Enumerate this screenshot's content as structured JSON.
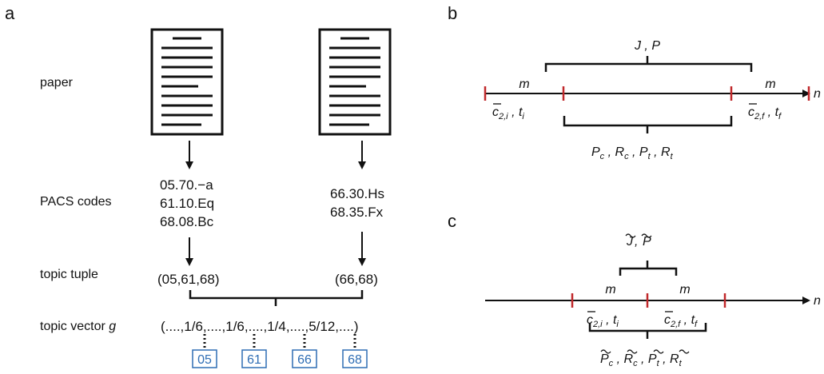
{
  "panels": {
    "a": {
      "letter": "a",
      "row_labels": {
        "paper": "paper",
        "pacs": "PACS codes",
        "tuple": "topic tuple",
        "vector_prefix": "topic vector ",
        "vector_symbol": "g"
      },
      "paper1_codes": [
        "05.70.−a",
        "61.10.Eq",
        "68.08.Bc"
      ],
      "paper2_codes": [
        "66.30.Hs",
        "68.35.Fx"
      ],
      "paper1_tuple": "(05,61,68)",
      "paper2_tuple": "(66,68)",
      "vector_text": "(....,1/6,....,1/6,....,1/4,....,5/12,....)",
      "vector_index_labels": [
        "05",
        "61",
        "66",
        "68"
      ]
    },
    "b": {
      "letter": "b",
      "top_brace": "J , P",
      "left_m": "m",
      "right_m": "m",
      "left_c": "c",
      "left_c_sub": "2,i",
      "left_t": "t",
      "left_t_sub": "i",
      "right_c": "c",
      "right_c_sub": "2,f",
      "right_t": "t",
      "right_t_sub": "f",
      "axis_label": "n",
      "bottom_terms": [
        {
          "sym": "P",
          "sub": "c"
        },
        {
          "sym": "R",
          "sub": "c"
        },
        {
          "sym": "P",
          "sub": "t"
        },
        {
          "sym": "R",
          "sub": "t"
        }
      ]
    },
    "c": {
      "letter": "c",
      "top_J": "J",
      "top_P": "P",
      "left_m": "m",
      "right_m": "m",
      "left_c": "c",
      "left_c_sub": "2,i",
      "left_t": "t",
      "left_t_sub": "i",
      "right_c": "c",
      "right_c_sub": "2,f",
      "right_t": "t",
      "right_t_sub": "f",
      "axis_label": "n",
      "bottom_terms": [
        {
          "sym": "P",
          "sub": "c"
        },
        {
          "sym": "R",
          "sub": "c"
        },
        {
          "sym": "P",
          "sub": "t"
        },
        {
          "sym": "R",
          "sub": "t"
        }
      ]
    }
  },
  "colors": {
    "tick": "#c0282b",
    "box": "#2e6db4",
    "ink": "#111111"
  }
}
